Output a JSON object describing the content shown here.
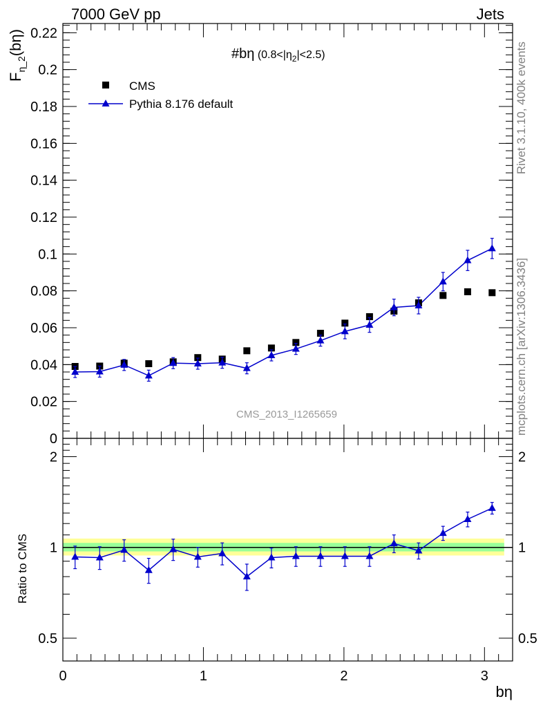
{
  "header": {
    "left": "7000 GeV pp",
    "right": "Jets"
  },
  "side_text": {
    "rivet": "Rivet 3.1.10,  400k events",
    "mcplots": "mcplots.cern.ch [arXiv:1306.3436]"
  },
  "watermark": "CMS_2013_I1265659",
  "colors": {
    "pythia": "#0000cc",
    "cms": "#000000",
    "band_outer": "#ffff99",
    "band_inner": "#99ff99"
  },
  "chart_data": [
    {
      "type": "scatter",
      "title": "#bη",
      "title_suffix": " (0.8<|η",
      "title_sub": "2",
      "title_end": "|<2.5)",
      "ylabel": "F",
      "ylabel_sub": "η_2",
      "ylabel_end": "(bη)",
      "xlabel": "bη",
      "xlim": [
        0,
        3.2
      ],
      "ylim": [
        0,
        0.225
      ],
      "yticks": [
        0,
        0.02,
        0.04,
        0.06,
        0.08,
        0.1,
        0.12,
        0.14,
        0.16,
        0.18,
        0.2,
        0.22
      ],
      "ytick_labels": [
        "0",
        "0.02",
        "0.04",
        "0.06",
        "0.08",
        "0.1",
        "0.12",
        "0.14",
        "0.16",
        "0.18",
        "0.2",
        "0.22"
      ],
      "legend_position": "top-left",
      "x": [
        0.087,
        0.262,
        0.436,
        0.611,
        0.785,
        0.96,
        1.134,
        1.309,
        1.484,
        1.658,
        1.833,
        2.007,
        2.182,
        2.356,
        2.531,
        2.705,
        2.88,
        3.054
      ],
      "series": [
        {
          "name": "CMS",
          "marker": "square",
          "values": [
            0.039,
            0.0392,
            0.0408,
            0.0405,
            0.0415,
            0.0438,
            0.043,
            0.0475,
            0.049,
            0.052,
            0.057,
            0.0625,
            0.066,
            0.069,
            0.0735,
            0.0775,
            0.0795,
            0.079
          ],
          "errors": [
            0.001,
            0.001,
            0.001,
            0.001,
            0.001,
            0.001,
            0.001,
            0.001,
            0.001,
            0.001,
            0.001,
            0.001,
            0.001,
            0.002,
            0.002,
            0.001,
            0.001,
            0.001
          ]
        },
        {
          "name": "Pythia 8.176 default",
          "marker": "triangle",
          "line": true,
          "values": [
            0.036,
            0.0362,
            0.0398,
            0.034,
            0.0408,
            0.0405,
            0.041,
            0.038,
            0.045,
            0.0485,
            0.053,
            0.058,
            0.0615,
            0.071,
            0.072,
            0.085,
            0.0965,
            0.103
          ],
          "errors": [
            0.003,
            0.003,
            0.003,
            0.003,
            0.003,
            0.003,
            0.003,
            0.003,
            0.003,
            0.003,
            0.003,
            0.004,
            0.004,
            0.0045,
            0.0045,
            0.005,
            0.0055,
            0.0055
          ]
        }
      ]
    },
    {
      "type": "scatter",
      "title": "",
      "ylabel": "Ratio to CMS",
      "xlabel": "bη",
      "xlim": [
        0,
        3.2
      ],
      "xticks": [
        0,
        1,
        2,
        3
      ],
      "xtick_labels": [
        "0",
        "1",
        "2",
        "3"
      ],
      "ylim": [
        0.42,
        2.3
      ],
      "log_scale_y": true,
      "yticks": [
        0.5,
        1,
        2
      ],
      "ytick_labels": [
        "0.5",
        "1",
        "2"
      ],
      "reference_line": 1,
      "band_outer": [
        0.94,
        1.07
      ],
      "band_inner": [
        0.97,
        1.035
      ],
      "series": [
        {
          "name": "Pythia 8.176 default",
          "values": [
            0.93,
            0.925,
            0.98,
            0.84,
            0.985,
            0.93,
            0.955,
            0.8,
            0.925,
            0.935,
            0.935,
            0.935,
            0.935,
            1.03,
            0.975,
            1.115,
            1.24,
            1.35
          ],
          "errors": [
            0.08,
            0.08,
            0.08,
            0.08,
            0.08,
            0.07,
            0.08,
            0.08,
            0.07,
            0.07,
            0.07,
            0.07,
            0.07,
            0.07,
            0.06,
            0.06,
            0.07,
            0.06
          ]
        }
      ]
    }
  ]
}
